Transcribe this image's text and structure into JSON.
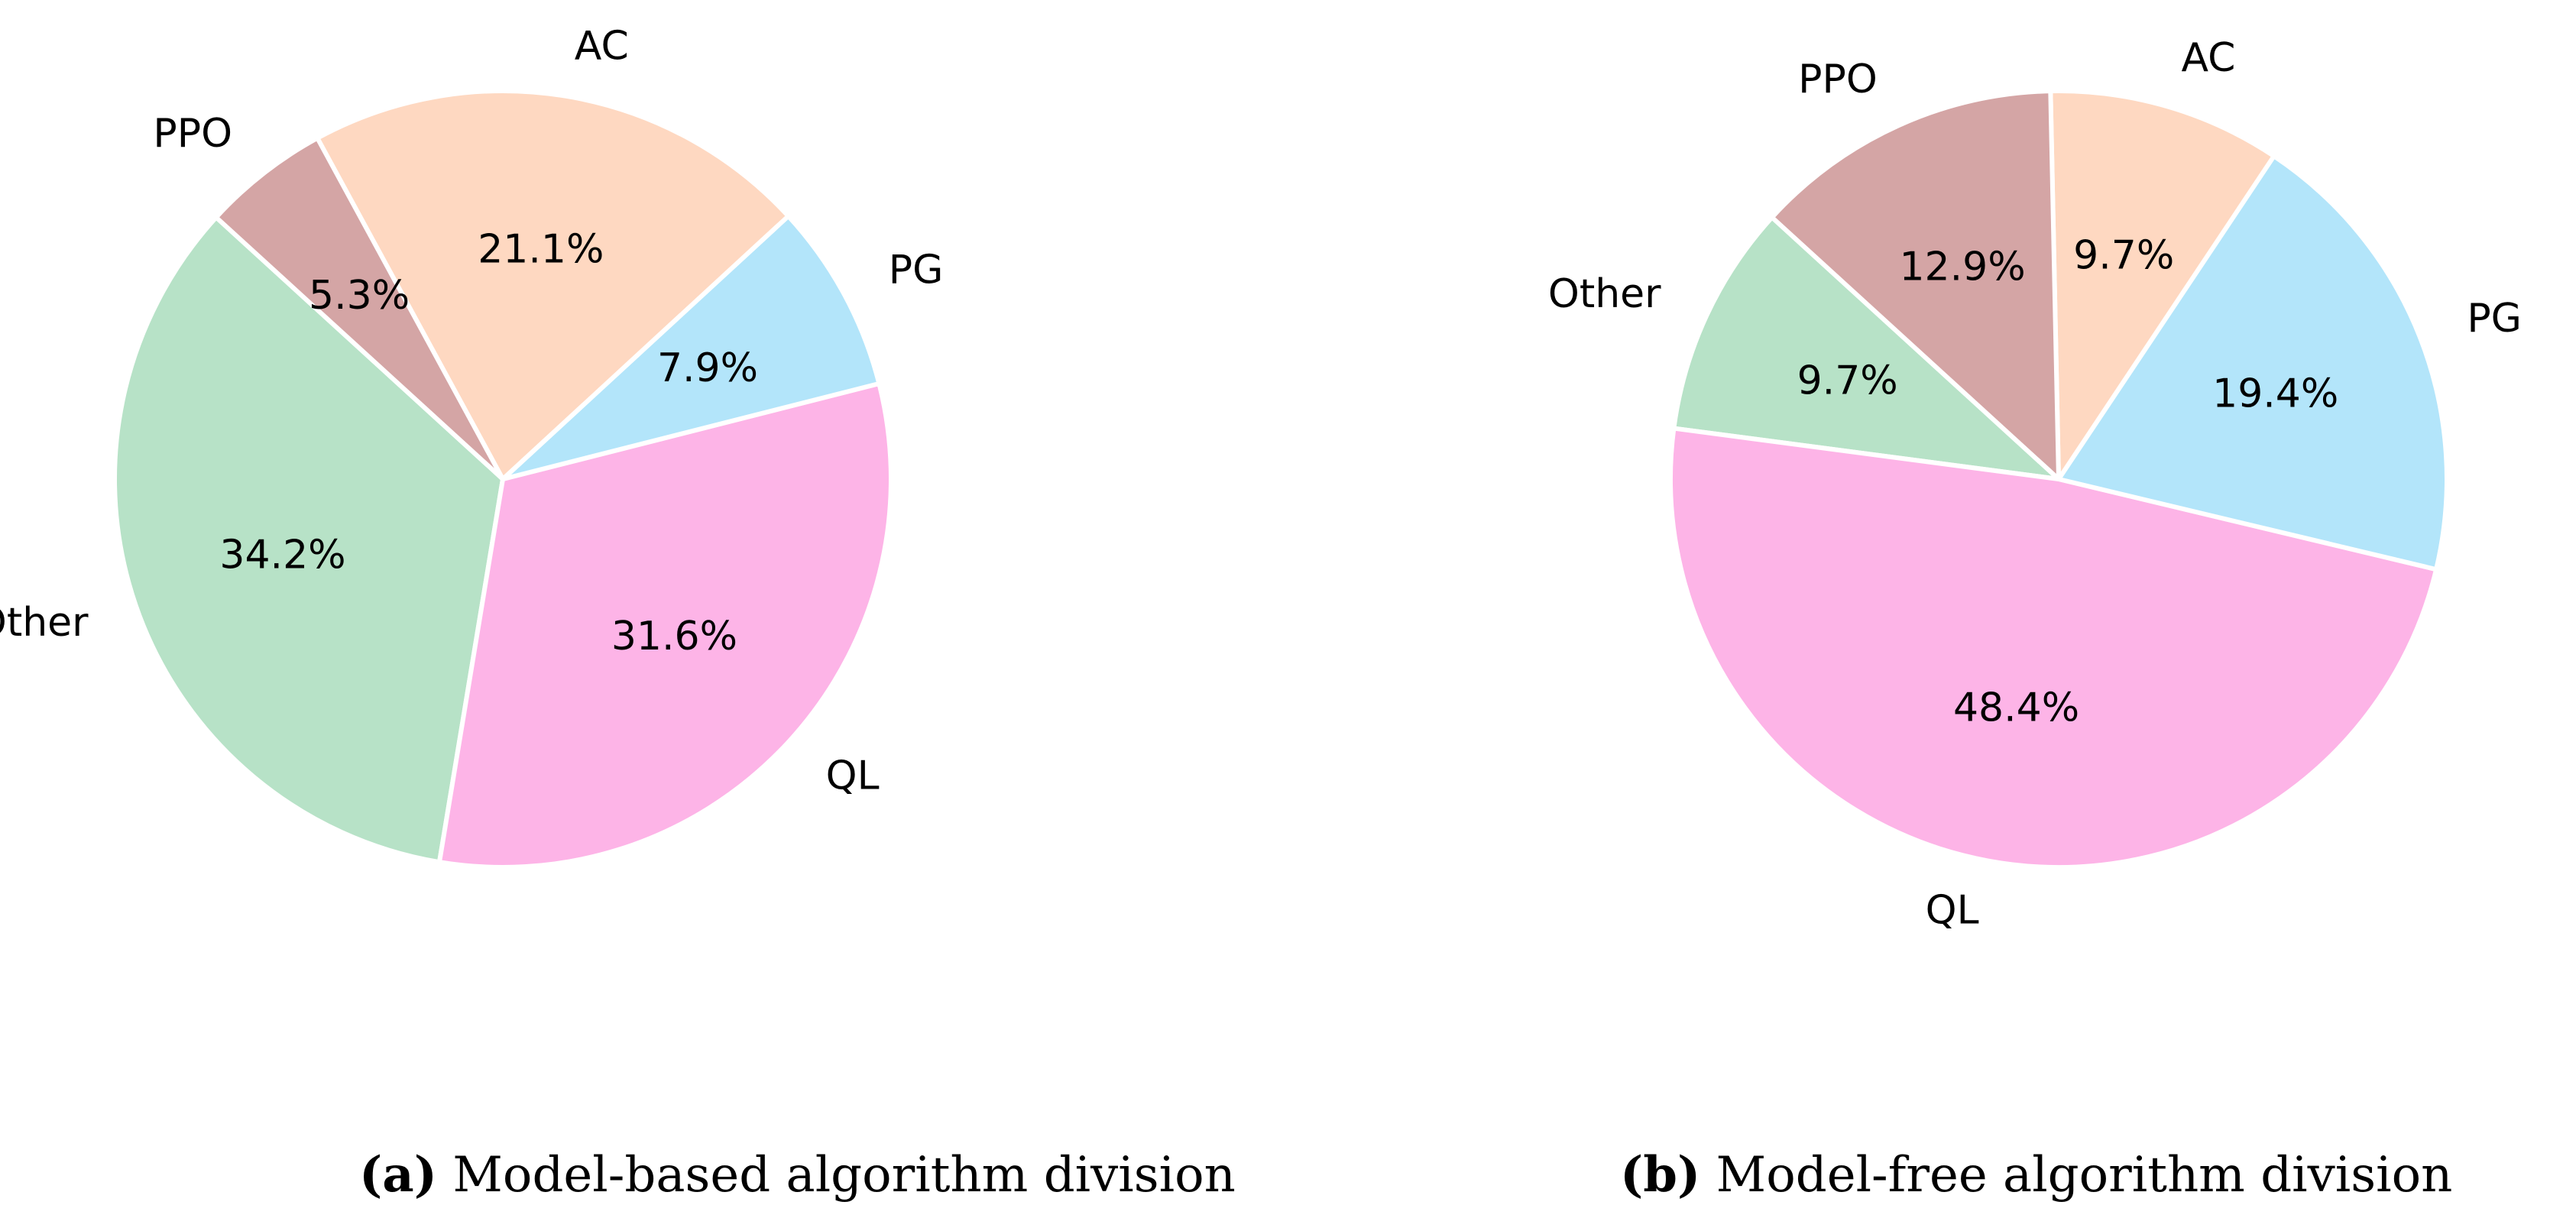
{
  "chart_data": [
    {
      "type": "pie",
      "id": "model-based",
      "slices": [
        {
          "label": "Other",
          "value": 34.2,
          "pct_label": "34.2%",
          "color": "#b7e2c7"
        },
        {
          "label": "QL",
          "value": 31.6,
          "pct_label": "31.6%",
          "color": "#fdb4e7"
        },
        {
          "label": "PG",
          "value": 7.9,
          "pct_label": "7.9%",
          "color": "#b3e5fa"
        },
        {
          "label": "AC",
          "value": 21.1,
          "pct_label": "21.1%",
          "color": "#fed8c1"
        },
        {
          "label": "PPO",
          "value": 5.3,
          "pct_label": "5.3%",
          "color": "#d4a5a5"
        }
      ],
      "start_angle_deg": 137.6,
      "direction": "counterclockwise",
      "caption": {
        "letter": "(a)",
        "text": "Model-based algorithm division"
      }
    },
    {
      "type": "pie",
      "id": "model-free",
      "slices": [
        {
          "label": "Other",
          "value": 9.7,
          "pct_label": "9.7%",
          "color": "#b7e2c7"
        },
        {
          "label": "QL",
          "value": 48.4,
          "pct_label": "48.4%",
          "color": "#fdb4e7"
        },
        {
          "label": "PG",
          "value": 19.4,
          "pct_label": "19.4%",
          "color": "#b3e5fa"
        },
        {
          "label": "AC",
          "value": 9.7,
          "pct_label": "9.7%",
          "color": "#fed8c1"
        },
        {
          "label": "PPO",
          "value": 12.9,
          "pct_label": "12.9%",
          "color": "#d4a5a5"
        }
      ],
      "start_angle_deg": 137.6,
      "direction": "counterclockwise",
      "caption": {
        "letter": "(b)",
        "text": "Model-free algorithm division"
      }
    }
  ]
}
